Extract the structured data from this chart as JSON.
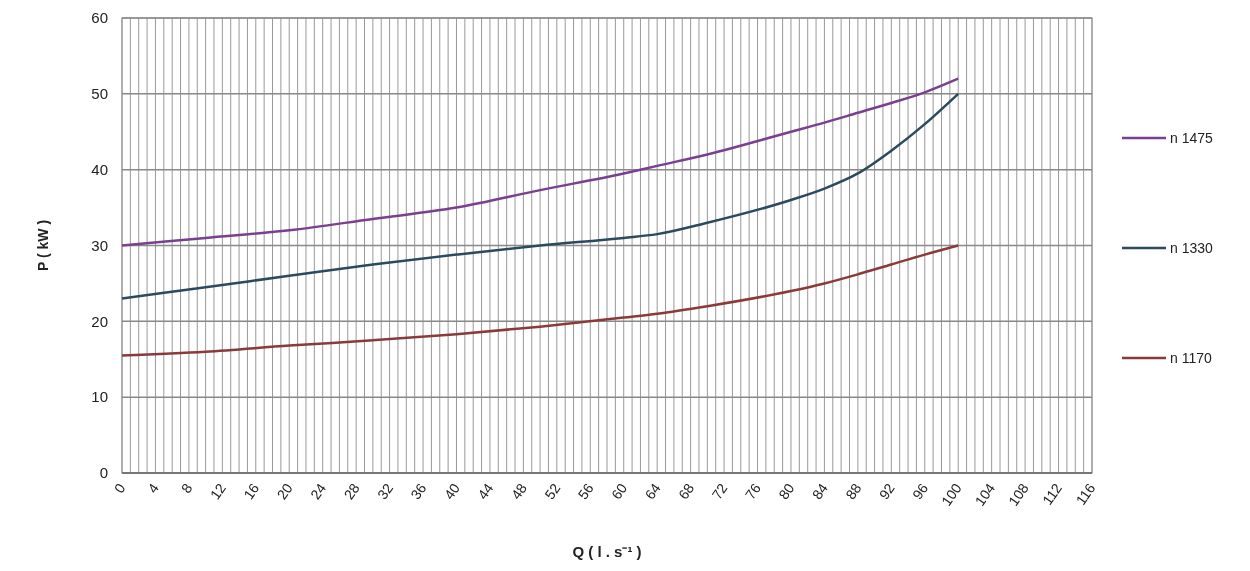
{
  "chart_data": {
    "type": "line",
    "xlabel": "Q ( l . s⁻¹ )",
    "ylabel": "P ( kW )",
    "xlim": [
      0,
      116
    ],
    "xticks": [
      0,
      {
        "value": 1,
        "label": null
      },
      {
        "value": 2,
        "label": null
      },
      {
        "value": 3,
        "label": null
      },
      4,
      {
        "value": 5,
        "label": null
      },
      {
        "value": 6,
        "label": null
      },
      {
        "value": 7,
        "label": null
      },
      8,
      {
        "value": 9,
        "label": null
      },
      {
        "value": 10,
        "label": null
      },
      {
        "value": 11,
        "label": null
      },
      12,
      {
        "value": 13,
        "label": null
      },
      {
        "value": 14,
        "label": null
      },
      {
        "value": 15,
        "label": null
      },
      16,
      {
        "value": 17,
        "label": null
      },
      {
        "value": 18,
        "label": null
      },
      {
        "value": 19,
        "label": null
      },
      20,
      {
        "value": 21,
        "label": null
      },
      {
        "value": 22,
        "label": null
      },
      {
        "value": 23,
        "label": null
      },
      24,
      {
        "value": 25,
        "label": null
      },
      {
        "value": 26,
        "label": null
      },
      {
        "value": 27,
        "label": null
      },
      28,
      {
        "value": 29,
        "label": null
      },
      {
        "value": 30,
        "label": null
      },
      {
        "value": 31,
        "label": null
      },
      32,
      {
        "value": 33,
        "label": null
      },
      {
        "value": 34,
        "label": null
      },
      {
        "value": 35,
        "label": null
      },
      36,
      {
        "value": 37,
        "label": null
      },
      {
        "value": 38,
        "label": null
      },
      {
        "value": 39,
        "label": null
      },
      40,
      {
        "value": 41,
        "label": null
      },
      {
        "value": 42,
        "label": null
      },
      {
        "value": 43,
        "label": null
      },
      44,
      {
        "value": 45,
        "label": null
      },
      {
        "value": 46,
        "label": null
      },
      {
        "value": 47,
        "label": null
      },
      48,
      {
        "value": 49,
        "label": null
      },
      {
        "value": 50,
        "label": null
      },
      {
        "value": 51,
        "label": null
      },
      52,
      {
        "value": 53,
        "label": null
      },
      {
        "value": 54,
        "label": null
      },
      {
        "value": 55,
        "label": null
      },
      56,
      {
        "value": 57,
        "label": null
      },
      {
        "value": 58,
        "label": null
      },
      {
        "value": 59,
        "label": null
      },
      60,
      {
        "value": 61,
        "label": null
      },
      {
        "value": 62,
        "label": null
      },
      {
        "value": 63,
        "label": null
      },
      64,
      {
        "value": 65,
        "label": null
      },
      {
        "value": 66,
        "label": null
      },
      {
        "value": 67,
        "label": null
      },
      68,
      {
        "value": 69,
        "label": null
      },
      {
        "value": 70,
        "label": null
      },
      {
        "value": 71,
        "label": null
      },
      72,
      {
        "value": 73,
        "label": null
      },
      {
        "value": 74,
        "label": null
      },
      {
        "value": 75,
        "label": null
      },
      76,
      {
        "value": 77,
        "label": null
      },
      {
        "value": 78,
        "label": null
      },
      {
        "value": 79,
        "label": null
      },
      80,
      {
        "value": 81,
        "label": null
      },
      {
        "value": 82,
        "label": null
      },
      {
        "value": 83,
        "label": null
      },
      84,
      {
        "value": 85,
        "label": null
      },
      {
        "value": 86,
        "label": null
      },
      {
        "value": 87,
        "label": null
      },
      88,
      {
        "value": 89,
        "label": null
      },
      {
        "value": 90,
        "label": null
      },
      {
        "value": 91,
        "label": null
      },
      92,
      {
        "value": 93,
        "label": null
      },
      {
        "value": 94,
        "label": null
      },
      {
        "value": 95,
        "label": null
      },
      96,
      {
        "value": 97,
        "label": null
      },
      {
        "value": 98,
        "label": null
      },
      {
        "value": 99,
        "label": null
      },
      100,
      {
        "value": 101,
        "label": null
      },
      {
        "value": 102,
        "label": null
      },
      {
        "value": 103,
        "label": null
      },
      104,
      {
        "value": 105,
        "label": null
      },
      {
        "value": 106,
        "label": null
      },
      {
        "value": 107,
        "label": null
      },
      108,
      {
        "value": 109,
        "label": null
      },
      {
        "value": 110,
        "label": null
      },
      {
        "value": 111,
        "label": null
      },
      112,
      {
        "value": 113,
        "label": null
      },
      {
        "value": 114,
        "label": null
      },
      {
        "value": 115,
        "label": null
      },
      116
    ],
    "ylim": [
      0,
      60
    ],
    "yticks": [
      0,
      10,
      20,
      30,
      40,
      50,
      60
    ],
    "grid": true,
    "legend": "right",
    "x": [
      0,
      10,
      20,
      30,
      40,
      50,
      60,
      64,
      70,
      80,
      84,
      88,
      92,
      96,
      100
    ],
    "series": [
      {
        "name": "n 1475",
        "color": "#7b3f8f",
        "values": [
          30,
          31,
          32,
          33.5,
          35,
          37.3,
          39.5,
          40.5,
          42,
          45,
          46.2,
          47.5,
          48.8,
          50.2,
          52
        ]
      },
      {
        "name": "n 1330",
        "color": "#2c4a5e",
        "values": [
          23,
          24.5,
          26,
          27.5,
          28.8,
          30,
          31,
          31.5,
          33,
          36,
          37.5,
          39.5,
          42.5,
          46,
          50
        ]
      },
      {
        "name": "n 1170",
        "color": "#8b3a3a",
        "values": [
          15.5,
          16,
          16.8,
          17.5,
          18.3,
          19.3,
          20.5,
          21,
          22,
          24,
          25,
          26.2,
          27.5,
          28.8,
          30
        ]
      }
    ]
  }
}
